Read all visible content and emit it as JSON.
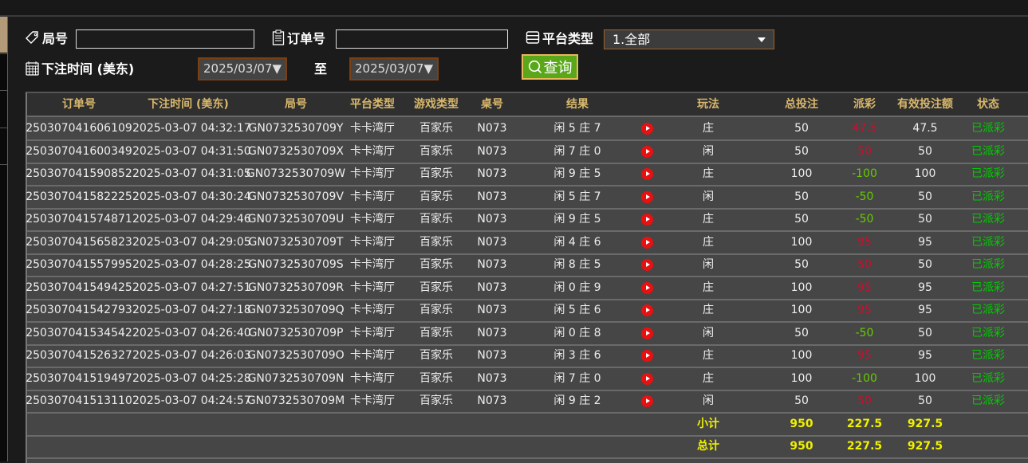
{
  "filters": {
    "round_label": "局号",
    "round_value": "",
    "order_label": "订单号",
    "order_value": "",
    "platform_label": "平台类型",
    "platform_selected": "1.全部",
    "time_label": "下注时间 (美东)",
    "date_from": "2025/03/07▼",
    "to_label": "至",
    "date_to": "2025/03/07▼",
    "search_label": "查询"
  },
  "colors": {
    "accent_header": "#d9b86c",
    "payout_positive": "#c8102e",
    "payout_negative": "#66cc00",
    "status_settled": "#00cc00",
    "totals": "#f0f000",
    "search_button": "#5aa81a"
  },
  "table": {
    "columns": [
      "订单号",
      "下注时间 (美东)",
      "局号",
      "平台类型",
      "游戏类型",
      "桌号",
      "结果",
      "",
      "玩法",
      "总投注",
      "派彩",
      "有效投注额",
      "状态"
    ],
    "rows": [
      [
        "250307041606109",
        "2025-03-07 04:32:17",
        "GN0732530709Y",
        "卡卡湾厅",
        "百家乐",
        "N073",
        "闲 5 庄 7",
        "play-icon",
        "庄",
        "50",
        "47.5",
        "47.5",
        "已派彩"
      ],
      [
        "250307041600349",
        "2025-03-07 04:31:50",
        "GN0732530709X",
        "卡卡湾厅",
        "百家乐",
        "N073",
        "闲 7 庄 0",
        "play-icon",
        "闲",
        "50",
        "50",
        "50",
        "已派彩"
      ],
      [
        "250307041590852",
        "2025-03-07 04:31:05",
        "GN0732530709W",
        "卡卡湾厅",
        "百家乐",
        "N073",
        "闲 9 庄 5",
        "play-icon",
        "庄",
        "100",
        "-100",
        "100",
        "已派彩"
      ],
      [
        "250307041582225",
        "2025-03-07 04:30:24",
        "GN0732530709V",
        "卡卡湾厅",
        "百家乐",
        "N073",
        "闲 5 庄 7",
        "play-icon",
        "闲",
        "50",
        "-50",
        "50",
        "已派彩"
      ],
      [
        "250307041574871",
        "2025-03-07 04:29:46",
        "GN0732530709U",
        "卡卡湾厅",
        "百家乐",
        "N073",
        "闲 9 庄 5",
        "play-icon",
        "庄",
        "50",
        "-50",
        "50",
        "已派彩"
      ],
      [
        "250307041565823",
        "2025-03-07 04:29:05",
        "GN0732530709T",
        "卡卡湾厅",
        "百家乐",
        "N073",
        "闲 4 庄 6",
        "play-icon",
        "庄",
        "100",
        "95",
        "95",
        "已派彩"
      ],
      [
        "250307041557995",
        "2025-03-07 04:28:25",
        "GN0732530709S",
        "卡卡湾厅",
        "百家乐",
        "N073",
        "闲 8 庄 5",
        "play-icon",
        "闲",
        "50",
        "50",
        "50",
        "已派彩"
      ],
      [
        "250307041549425",
        "2025-03-07 04:27:51",
        "GN0732530709R",
        "卡卡湾厅",
        "百家乐",
        "N073",
        "闲 0 庄 9",
        "play-icon",
        "庄",
        "100",
        "95",
        "95",
        "已派彩"
      ],
      [
        "250307041542793",
        "2025-03-07 04:27:18",
        "GN0732530709Q",
        "卡卡湾厅",
        "百家乐",
        "N073",
        "闲 5 庄 6",
        "play-icon",
        "庄",
        "100",
        "95",
        "95",
        "已派彩"
      ],
      [
        "250307041534542",
        "2025-03-07 04:26:40",
        "GN0732530709P",
        "卡卡湾厅",
        "百家乐",
        "N073",
        "闲 0 庄 8",
        "play-icon",
        "闲",
        "50",
        "-50",
        "50",
        "已派彩"
      ],
      [
        "250307041526327",
        "2025-03-07 04:26:03",
        "GN0732530709O",
        "卡卡湾厅",
        "百家乐",
        "N073",
        "闲 3 庄 6",
        "play-icon",
        "庄",
        "100",
        "95",
        "95",
        "已派彩"
      ],
      [
        "250307041519497",
        "2025-03-07 04:25:28",
        "GN0732530709N",
        "卡卡湾厅",
        "百家乐",
        "N073",
        "闲 7 庄 0",
        "play-icon",
        "庄",
        "100",
        "-100",
        "100",
        "已派彩"
      ],
      [
        "250307041513110",
        "2025-03-07 04:24:57",
        "GN0732530709M",
        "卡卡湾厅",
        "百家乐",
        "N073",
        "闲 9 庄 2",
        "play-icon",
        "闲",
        "50",
        "50",
        "50",
        "已派彩"
      ]
    ],
    "subtotal": {
      "label": "小计",
      "total_bet": "950",
      "payout": "227.5",
      "valid_bet": "927.5"
    },
    "grand_total": {
      "label": "总计",
      "total_bet": "950",
      "payout": "227.5",
      "valid_bet": "927.5"
    }
  }
}
